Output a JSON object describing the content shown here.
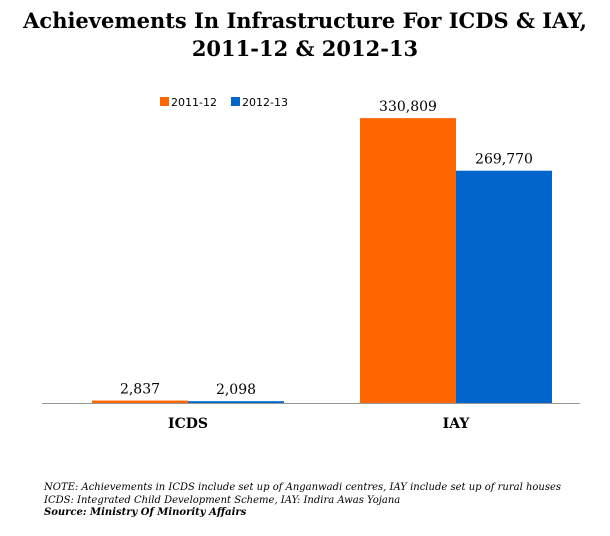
{
  "chart_data": {
    "type": "bar",
    "title": "Achievements In Infrastructure For ICDS & IAY,",
    "subtitle": "2011-12 & 2012-13",
    "categories": [
      "ICDS",
      "IAY"
    ],
    "series": [
      {
        "name": "2011-12",
        "values": [
          2837,
          330809
        ],
        "labels": [
          "2,837",
          "330,809"
        ],
        "color": "#FF6600"
      },
      {
        "name": "2012-13",
        "values": [
          2098,
          269770
        ],
        "labels": [
          "2,098",
          "269,770"
        ],
        "color": "#0066CC"
      }
    ],
    "ylim": [
      0,
      360000
    ],
    "grid": false,
    "legend": "top-left"
  },
  "notes": {
    "line1": "NOTE: Achievements in ICDS include set up of Anganwadi centres, IAY include set up of rural houses",
    "line2": "ICDS: Integrated Child Development Scheme, IAY: Indira Awas Yojana",
    "source": "Source: Ministry Of Minority Affairs"
  }
}
